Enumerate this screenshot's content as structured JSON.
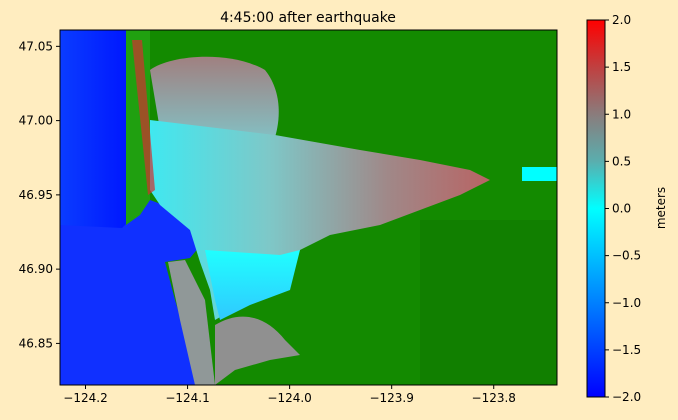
{
  "chart_data": {
    "type": "heatmap",
    "title": "4:45:00 after earthquake",
    "xlabel": "",
    "ylabel": "",
    "xlim": [
      -124.225,
      -123.738
    ],
    "ylim": [
      46.822,
      47.061
    ],
    "xticks": [
      -124.2,
      -124.1,
      -124.0,
      -123.9,
      -123.8
    ],
    "xtick_labels": [
      "−124.2",
      "−124.1",
      "−124.0",
      "−123.9",
      "−123.8"
    ],
    "yticks": [
      46.85,
      46.9,
      46.95,
      47.0,
      47.05
    ],
    "ytick_labels": [
      "46.85",
      "46.90",
      "46.95",
      "47.00",
      "47.05"
    ],
    "colorbar": {
      "label": "meters",
      "range": [
        -2.0,
        2.0
      ],
      "ticks": [
        -2.0,
        -1.5,
        -1.0,
        -0.5,
        0.0,
        0.5,
        1.0,
        1.5,
        2.0
      ],
      "tick_labels": [
        "−2.0",
        "−1.5",
        "−1.0",
        "−0.5",
        "0.0",
        "0.5",
        "1.0",
        "1.5",
        "2.0"
      ],
      "colormap": [
        {
          "value": -2.0,
          "color": "#0000ff"
        },
        {
          "value": -1.0,
          "color": "#0080ff"
        },
        {
          "value": 0.0,
          "color": "#00ffff"
        },
        {
          "value": 0.5,
          "color": "#5aaeae"
        },
        {
          "value": 1.0,
          "color": "#8a7c7c"
        },
        {
          "value": 1.5,
          "color": "#c04040"
        },
        {
          "value": 2.0,
          "color": "#ff0000"
        }
      ]
    },
    "land_color": "#138a00",
    "background_color": "#ffedc0"
  }
}
